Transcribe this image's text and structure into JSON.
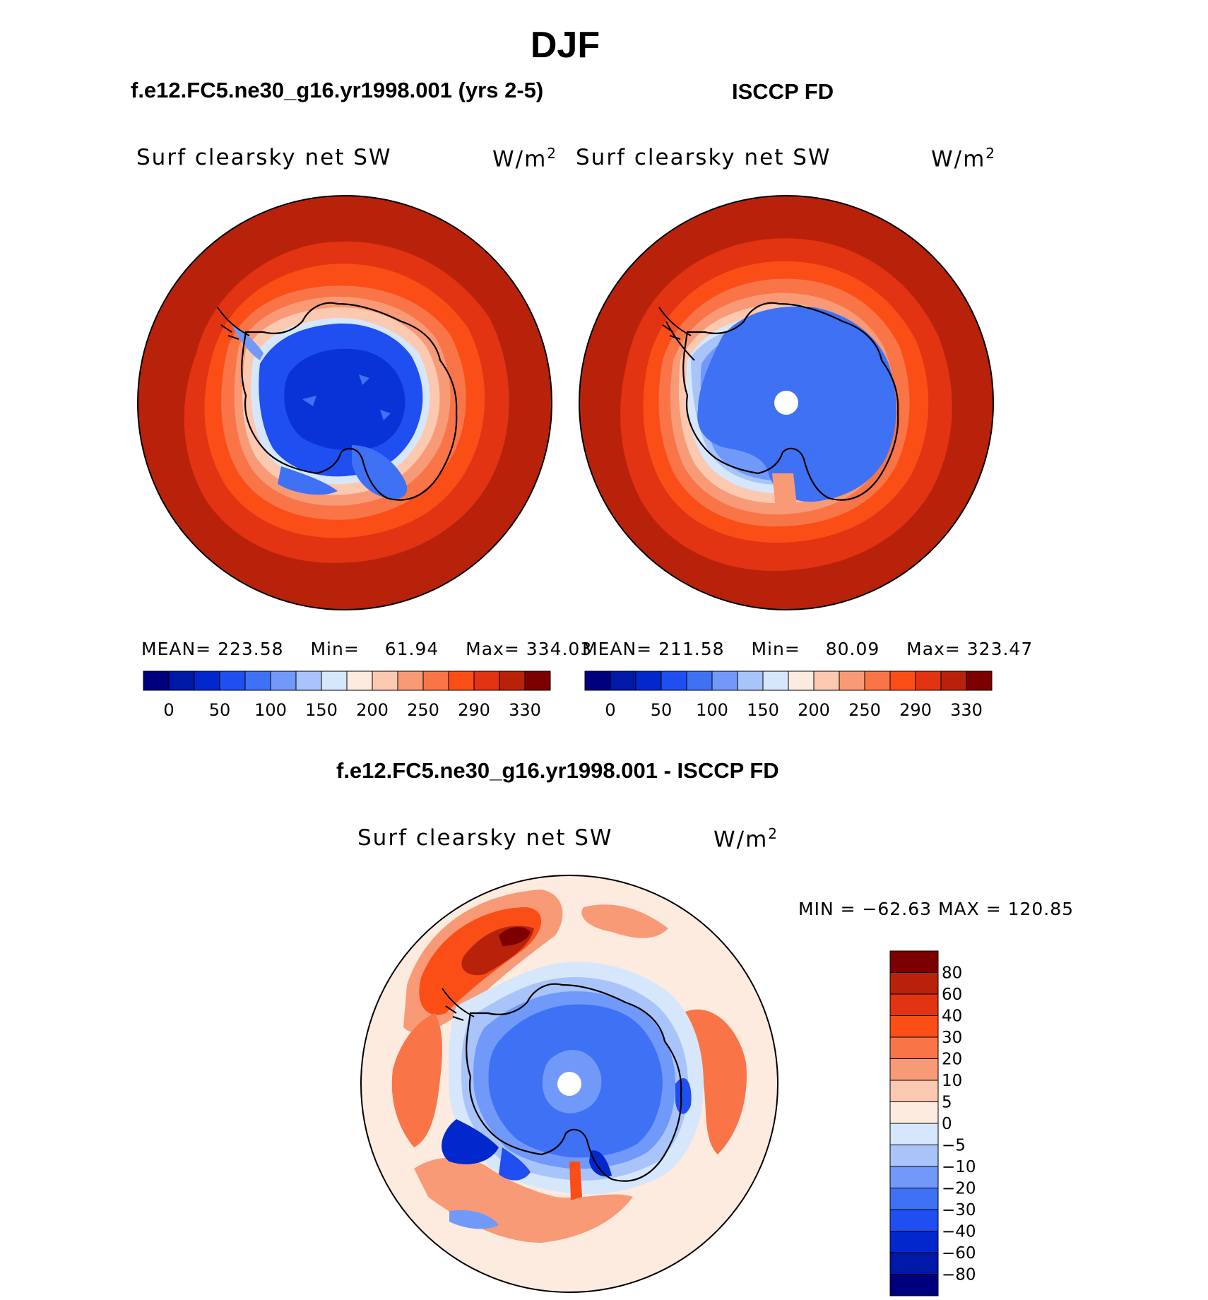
{
  "figure": {
    "title": "DJF"
  },
  "panels": [
    {
      "heading": "f.e12.FC5.ne30_g16.yr1998.001 (yrs 2-5)",
      "variable": "Surf clearsky net SW",
      "units": "W/m",
      "units_sup": "2",
      "stats": {
        "mean_label": "MEAN=",
        "mean": "223.58",
        "min_label": "Min=",
        "min": "61.94",
        "max_label": "Max=",
        "max": "334.03"
      }
    },
    {
      "heading": "ISCCP FD",
      "variable": "Surf clearsky net SW",
      "units": "W/m",
      "units_sup": "2",
      "stats": {
        "mean_label": "MEAN=",
        "mean": "211.58",
        "min_label": "Min=",
        "min": "80.09",
        "max_label": "Max=",
        "max": "323.47"
      }
    }
  ],
  "difference": {
    "heading": "f.e12.FC5.ne30_g16.yr1998.001 - ISCCP FD",
    "variable": "Surf clearsky net SW",
    "units": "W/m",
    "units_sup": "2",
    "minmax": "MIN = −62.63 MAX = 120.85"
  },
  "colorbars": {
    "absolute": {
      "colors": [
        "#00007f",
        "#0018a6",
        "#0028cc",
        "#1f4ff0",
        "#3f71f5",
        "#7199fa",
        "#a8c4fb",
        "#d6e7fb",
        "#fdebe0",
        "#fbc9b0",
        "#f99a77",
        "#f97548",
        "#fb4e17",
        "#e23312",
        "#b9220a",
        "#7d0000"
      ],
      "tick_labels": [
        "0",
        "50",
        "100",
        "150",
        "200",
        "250",
        "290",
        "330"
      ]
    },
    "difference": {
      "colors": [
        "#7d0000",
        "#b9220a",
        "#e23312",
        "#fb4e17",
        "#f97548",
        "#f99a77",
        "#fbc9b0",
        "#fdebe0",
        "#d6e7fb",
        "#a8c4fb",
        "#7199fa",
        "#3f71f5",
        "#1f4ff0",
        "#0028cc",
        "#0018a6",
        "#00007f"
      ],
      "tick_labels": [
        "80",
        "60",
        "40",
        "30",
        "20",
        "10",
        "5",
        "0",
        "−5",
        "−10",
        "−20",
        "−30",
        "−40",
        "−60",
        "−80"
      ]
    }
  }
}
